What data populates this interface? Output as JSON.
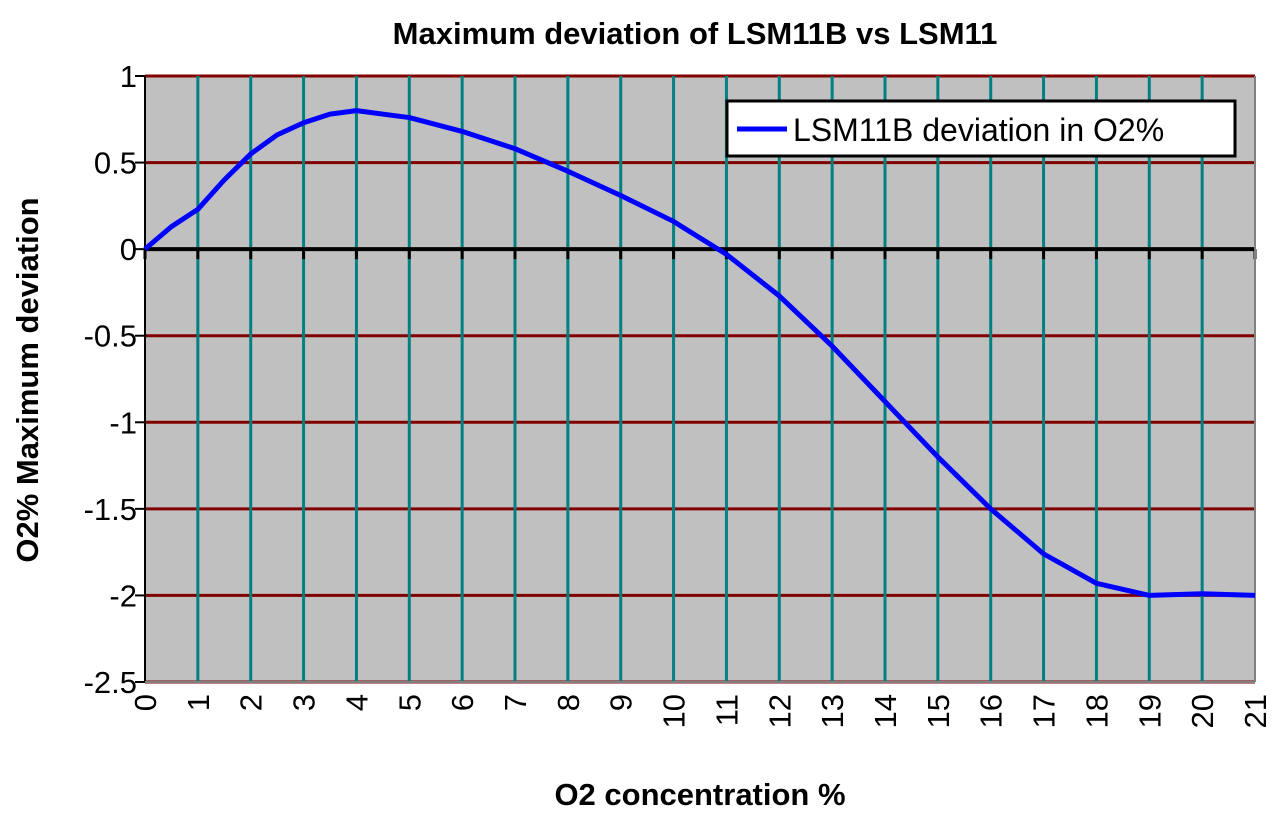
{
  "chart_data": {
    "type": "line",
    "title": "Maximum deviation of LSM11B vs LSM11",
    "xlabel": "O2 concentration %",
    "ylabel": "O2% Maximum deviation",
    "xlim": [
      0,
      21
    ],
    "ylim": [
      -2.5,
      1
    ],
    "x_ticks": [
      "0",
      "1",
      "2",
      "3",
      "4",
      "5",
      "6",
      "7",
      "8",
      "9",
      "10",
      "11",
      "12",
      "13",
      "14",
      "15",
      "16",
      "17",
      "18",
      "19",
      "20",
      "21"
    ],
    "y_ticks": [
      "1",
      "0.5",
      "0",
      "-0.5",
      "-1",
      "-1.5",
      "-2",
      "-2.5"
    ],
    "grid": true,
    "legend_position": "top-right",
    "colors": {
      "plot_bg": "#c0c0c0",
      "h_grid": "#800000",
      "v_grid": "#008080",
      "series": "#0000ff"
    },
    "series": [
      {
        "name": "LSM11B deviation in O2%",
        "x": [
          0,
          0.5,
          1,
          1.5,
          2,
          2.5,
          3,
          3.5,
          4,
          5,
          6,
          7,
          8,
          9,
          10,
          11,
          12,
          13,
          14,
          15,
          16,
          17,
          18,
          19,
          20,
          21
        ],
        "y": [
          0,
          0.13,
          0.23,
          0.4,
          0.55,
          0.66,
          0.73,
          0.78,
          0.8,
          0.76,
          0.68,
          0.58,
          0.45,
          0.31,
          0.16,
          -0.03,
          -0.27,
          -0.56,
          -0.88,
          -1.2,
          -1.5,
          -1.76,
          -1.93,
          -2.0,
          -1.99,
          -2.0
        ]
      }
    ]
  }
}
